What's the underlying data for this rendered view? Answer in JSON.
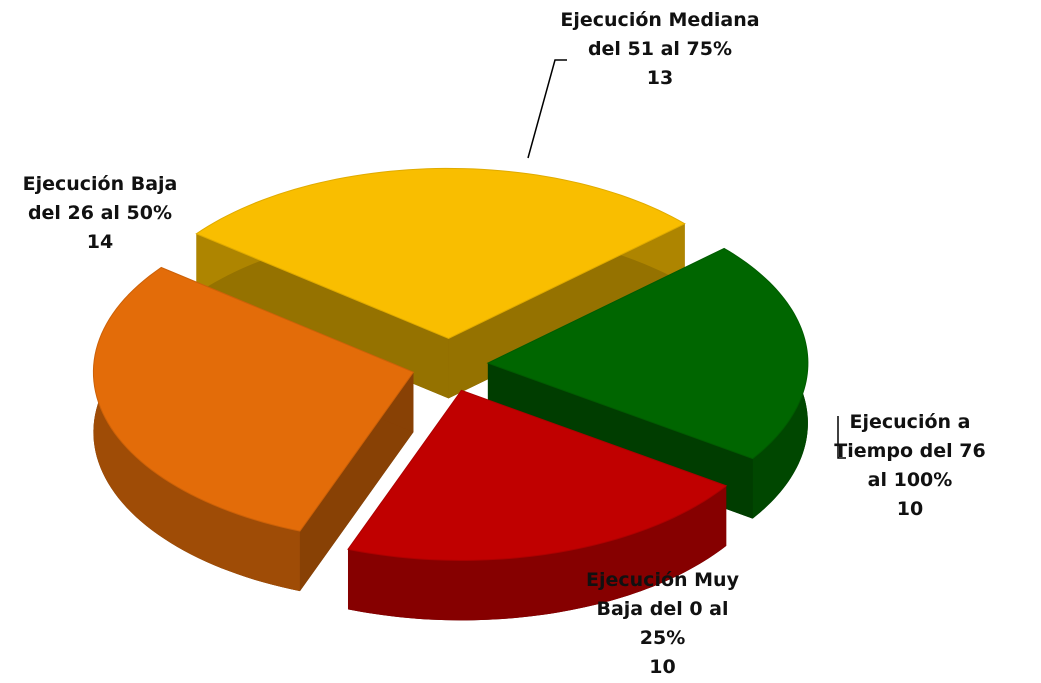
{
  "chart_data": {
    "type": "pie3d",
    "categories": [
      "Ejecución Mediana del 51 al 75%",
      "Ejecución a Tiempo del 76 al 100%",
      "Ejecución Muy Baja del 0 al 25%",
      "Ejecución Baja del 26 al 50%"
    ],
    "values": [
      13,
      10,
      10,
      14
    ],
    "colors": [
      "#f9be00",
      "#006600",
      "#c00000",
      "#e36c09"
    ]
  }
}
